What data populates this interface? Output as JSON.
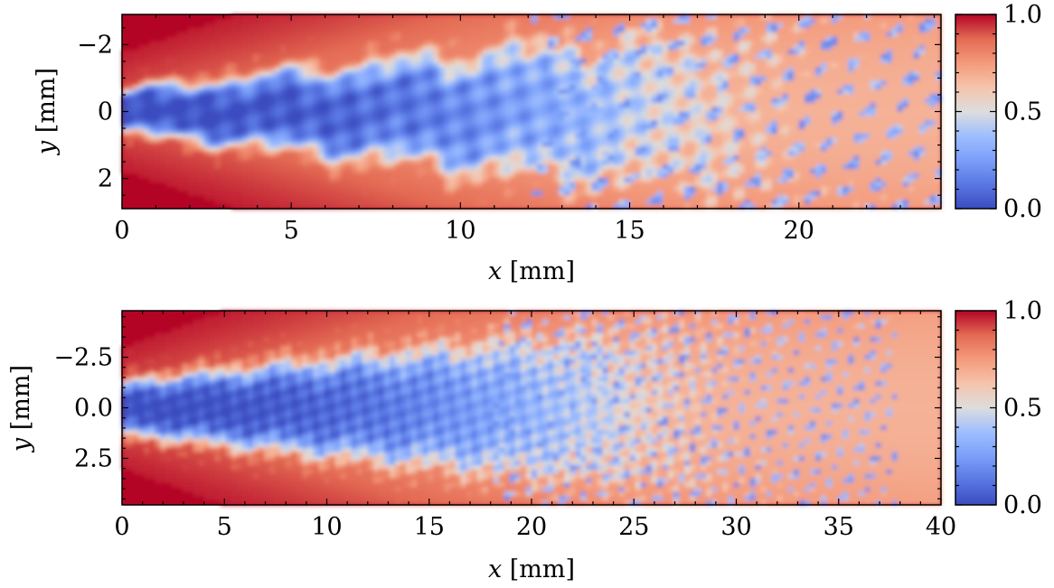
{
  "chart_data": [
    {
      "type": "heatmap",
      "title": "",
      "xlabel_var": "x",
      "xlabel_unit": " [mm]",
      "ylabel_var": "y",
      "ylabel_unit": " [mm]",
      "xlim": [
        0,
        24.2
      ],
      "ylim": [
        -2.9,
        2.9
      ],
      "y_inverted": true,
      "xticks": [
        0,
        5,
        10,
        15,
        20
      ],
      "xtick_labels": [
        "0",
        "5",
        "10",
        "15",
        "20"
      ],
      "yticks": [
        -2,
        0,
        2
      ],
      "ytick_labels": [
        "−2",
        "0",
        "2"
      ],
      "colorbar": {
        "range": [
          0,
          1
        ],
        "ticks": [
          0,
          0.5,
          1
        ],
        "tick_labels": [
          "0.0",
          "0.5",
          "1.0"
        ],
        "colormap": "coolwarm"
      },
      "field": {
        "jet_half_width_at_nozzle": 0.6,
        "breakup_length": 22,
        "spread_rate": 0.105
      }
    },
    {
      "type": "heatmap",
      "title": "",
      "xlabel_var": "x",
      "xlabel_unit": " [mm]",
      "ylabel_var": "y",
      "ylabel_unit": " [mm]",
      "xlim": [
        0,
        40
      ],
      "ylim": [
        -4.8,
        4.8
      ],
      "y_inverted": true,
      "xticks": [
        0,
        5,
        10,
        15,
        20,
        25,
        30,
        35,
        40
      ],
      "xtick_labels": [
        "0",
        "5",
        "10",
        "15",
        "20",
        "25",
        "30",
        "35",
        "40"
      ],
      "yticks": [
        -2.5,
        0,
        2.5
      ],
      "ytick_labels": [
        "−2.5",
        "0.0",
        "2.5"
      ],
      "colorbar": {
        "range": [
          0,
          1
        ],
        "ticks": [
          0,
          0.5,
          1
        ],
        "tick_labels": [
          "0.0",
          "0.5",
          "1.0"
        ],
        "colormap": "coolwarm"
      },
      "field": {
        "jet_half_width_at_nozzle": 1.2,
        "breakup_length": 33,
        "spread_rate": 0.11
      }
    }
  ],
  "colors": {
    "low": "#3b4cc0",
    "mid": "#dddddd",
    "high": "#b40426"
  }
}
